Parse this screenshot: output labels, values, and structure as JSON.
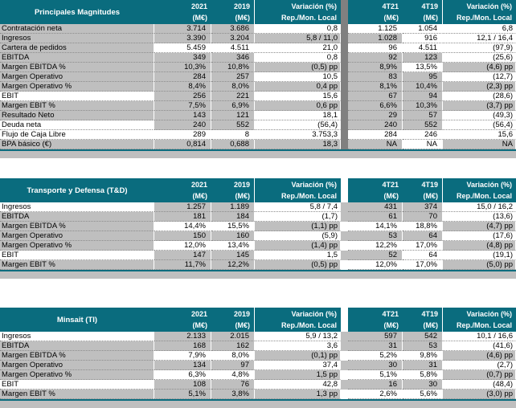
{
  "colors": {
    "header_teal": "#0a6c7e",
    "cell_gray": "#bfbfbf",
    "gap_dark_gray": "#808080",
    "header_text": "#ffffff",
    "body_text": "#000000"
  },
  "column_headers": [
    [
      "2021",
      "(M€)"
    ],
    [
      "2019",
      "(M€)"
    ],
    [
      "Variación (%)",
      "Rep./Mon. Local"
    ],
    [
      "4T21",
      "(M€)"
    ],
    [
      "4T19",
      "(M€)"
    ],
    [
      "Variación (%)",
      "Rep./Mon. Local"
    ]
  ],
  "tables": [
    {
      "id": "principales-magnitudes",
      "title": "Principales Magnitudes",
      "dark_gap": true,
      "rows": [
        {
          "label": "Contratación neta",
          "bg": [
            "g",
            "g",
            "g",
            "w",
            "w",
            "w",
            "w"
          ],
          "values": [
            "3.714",
            "3.686",
            "0,8",
            "1.125",
            "1.054",
            "6,8"
          ]
        },
        {
          "label": "Ingresos",
          "bg": [
            "g",
            "g",
            "g",
            "g",
            "g",
            "w",
            "w"
          ],
          "values": [
            "3.390",
            "3.204",
            "5,8 / 11,0",
            "1.028",
            "916",
            "12,1 / 16,4"
          ]
        },
        {
          "label": "Cartera de pedidos",
          "bg": [
            "g",
            "w",
            "w",
            "w",
            "w",
            "w",
            "w"
          ],
          "values": [
            "5.459",
            "4.511",
            "21,0",
            "96",
            "4.511",
            "(97,9)"
          ]
        },
        {
          "label": "EBITDA",
          "bg": [
            "g",
            "g",
            "g",
            "w",
            "g",
            "g",
            "w"
          ],
          "values": [
            "349",
            "346",
            "0,8",
            "92",
            "123",
            "(25,6)"
          ]
        },
        {
          "label": "Margen EBITDA %",
          "bg": [
            "g",
            "g",
            "g",
            "g",
            "g",
            "w",
            "g"
          ],
          "values": [
            "10,3%",
            "10,8%",
            "(0,5) pp",
            "8,9%",
            "13,5%",
            "(4,6) pp"
          ]
        },
        {
          "label": "Margen Operativo",
          "bg": [
            "g",
            "g",
            "g",
            "w",
            "g",
            "g",
            "w"
          ],
          "values": [
            "284",
            "257",
            "10,5",
            "83",
            "95",
            "(12,7)"
          ]
        },
        {
          "label": "Margen Operativo %",
          "bg": [
            "g",
            "g",
            "g",
            "g",
            "g",
            "g",
            "g"
          ],
          "values": [
            "8,4%",
            "8,0%",
            "0,4 pp",
            "8,1%",
            "10,4%",
            "(2,3) pp"
          ]
        },
        {
          "label": "EBIT",
          "bg": [
            "w",
            "g",
            "g",
            "w",
            "g",
            "g",
            "w"
          ],
          "values": [
            "256",
            "221",
            "15,6",
            "67",
            "94",
            "(28,6)"
          ]
        },
        {
          "label": "Margen EBIT %",
          "bg": [
            "g",
            "g",
            "g",
            "g",
            "g",
            "g",
            "g"
          ],
          "values": [
            "7,5%",
            "6,9%",
            "0,6 pp",
            "6,6%",
            "10,3%",
            "(3,7) pp"
          ]
        },
        {
          "label": "Resultado Neto",
          "bg": [
            "g",
            "g",
            "g",
            "w",
            "g",
            "g",
            "w"
          ],
          "values": [
            "143",
            "121",
            "18,1",
            "29",
            "57",
            "(49,3)"
          ]
        },
        {
          "label": "Deuda neta",
          "bg": [
            "w",
            "g",
            "g",
            "w",
            "g",
            "g",
            "w"
          ],
          "values": [
            "240",
            "552",
            "(56,4)",
            "240",
            "552",
            "(56,4)"
          ]
        },
        {
          "label": "Flujo de Caja Libre",
          "bg": [
            "w",
            "w",
            "w",
            "w",
            "w",
            "w",
            "w"
          ],
          "values": [
            "289",
            "8",
            "3.753,3",
            "284",
            "246",
            "15,6"
          ]
        },
        {
          "label": "BPA básico (€)",
          "bg": [
            "g",
            "g",
            "g",
            "g",
            "g",
            "w",
            "g"
          ],
          "values": [
            "0,814",
            "0,688",
            "18,3",
            "NA",
            "NA",
            "NA"
          ]
        }
      ]
    },
    {
      "id": "transporte-defensa",
      "title": "Transporte y Defensa (T&D)",
      "dark_gap": false,
      "rows": [
        {
          "label": "Ingresos",
          "bg": [
            "w",
            "g",
            "g",
            "w",
            "g",
            "g",
            "w"
          ],
          "values": [
            "1.257",
            "1.189",
            "5,8 / 7,4",
            "431",
            "374",
            "15,0 / 16,2"
          ]
        },
        {
          "label": "EBITDA",
          "bg": [
            "g",
            "g",
            "g",
            "w",
            "g",
            "g",
            "w"
          ],
          "values": [
            "181",
            "184",
            "(1,7)",
            "61",
            "70",
            "(13,6)"
          ]
        },
        {
          "label": "Margen EBITDA %",
          "bg": [
            "g",
            "w",
            "w",
            "g",
            "w",
            "w",
            "g"
          ],
          "values": [
            "14,4%",
            "15,5%",
            "(1,1) pp",
            "14,1%",
            "18,8%",
            "(4,7) pp"
          ]
        },
        {
          "label": "Margen Operativo",
          "bg": [
            "g",
            "g",
            "g",
            "w",
            "g",
            "g",
            "w"
          ],
          "values": [
            "150",
            "160",
            "(5,9)",
            "53",
            "64",
            "(17,6)"
          ]
        },
        {
          "label": "Margen Operativo %",
          "bg": [
            "g",
            "w",
            "w",
            "g",
            "w",
            "w",
            "g"
          ],
          "values": [
            "12,0%",
            "13,4%",
            "(1,4) pp",
            "12,2%",
            "17,0%",
            "(4,8) pp"
          ]
        },
        {
          "label": "EBIT",
          "bg": [
            "w",
            "g",
            "g",
            "w",
            "g",
            "w",
            "w"
          ],
          "values": [
            "147",
            "145",
            "1,5",
            "52",
            "64",
            "(19,1)"
          ]
        },
        {
          "label": "Margen EBIT %",
          "bg": [
            "g",
            "g",
            "g",
            "g",
            "w",
            "w",
            "g"
          ],
          "values": [
            "11,7%",
            "12,2%",
            "(0,5) pp",
            "12,0%",
            "17,0%",
            "(5,0) pp"
          ]
        }
      ]
    },
    {
      "id": "minsait",
      "title": "Minsait (TI)",
      "dark_gap": false,
      "rows": [
        {
          "label": "Ingresos",
          "bg": [
            "w",
            "g",
            "g",
            "w",
            "g",
            "g",
            "w"
          ],
          "values": [
            "2.133",
            "2.015",
            "5,9 / 13,2",
            "597",
            "542",
            "10,1 / 16,6"
          ]
        },
        {
          "label": "EBITDA",
          "bg": [
            "g",
            "g",
            "g",
            "w",
            "g",
            "g",
            "w"
          ],
          "values": [
            "168",
            "162",
            "3,6",
            "31",
            "53",
            "(41,6)"
          ]
        },
        {
          "label": "Margen EBITDA %",
          "bg": [
            "g",
            "w",
            "w",
            "g",
            "w",
            "w",
            "g"
          ],
          "values": [
            "7,9%",
            "8,0%",
            "(0,1) pp",
            "5,2%",
            "9,8%",
            "(4,6) pp"
          ]
        },
        {
          "label": "Margen Operativo",
          "bg": [
            "g",
            "g",
            "g",
            "w",
            "g",
            "g",
            "w"
          ],
          "values": [
            "134",
            "97",
            "37,4",
            "30",
            "31",
            "(2,7)"
          ]
        },
        {
          "label": "Margen Operativo %",
          "bg": [
            "g",
            "w",
            "w",
            "g",
            "w",
            "w",
            "g"
          ],
          "values": [
            "6,3%",
            "4,8%",
            "1,5 pp",
            "5,1%",
            "5,8%",
            "(0,7) pp"
          ]
        },
        {
          "label": "EBIT",
          "bg": [
            "w",
            "g",
            "g",
            "w",
            "g",
            "g",
            "w"
          ],
          "values": [
            "108",
            "76",
            "42,8",
            "16",
            "30",
            "(48,4)"
          ]
        },
        {
          "label": "Margen EBIT %",
          "bg": [
            "g",
            "g",
            "g",
            "g",
            "w",
            "w",
            "g"
          ],
          "values": [
            "5,1%",
            "3,8%",
            "1,3 pp",
            "2,6%",
            "5,6%",
            "(3,0) pp"
          ]
        }
      ]
    }
  ]
}
